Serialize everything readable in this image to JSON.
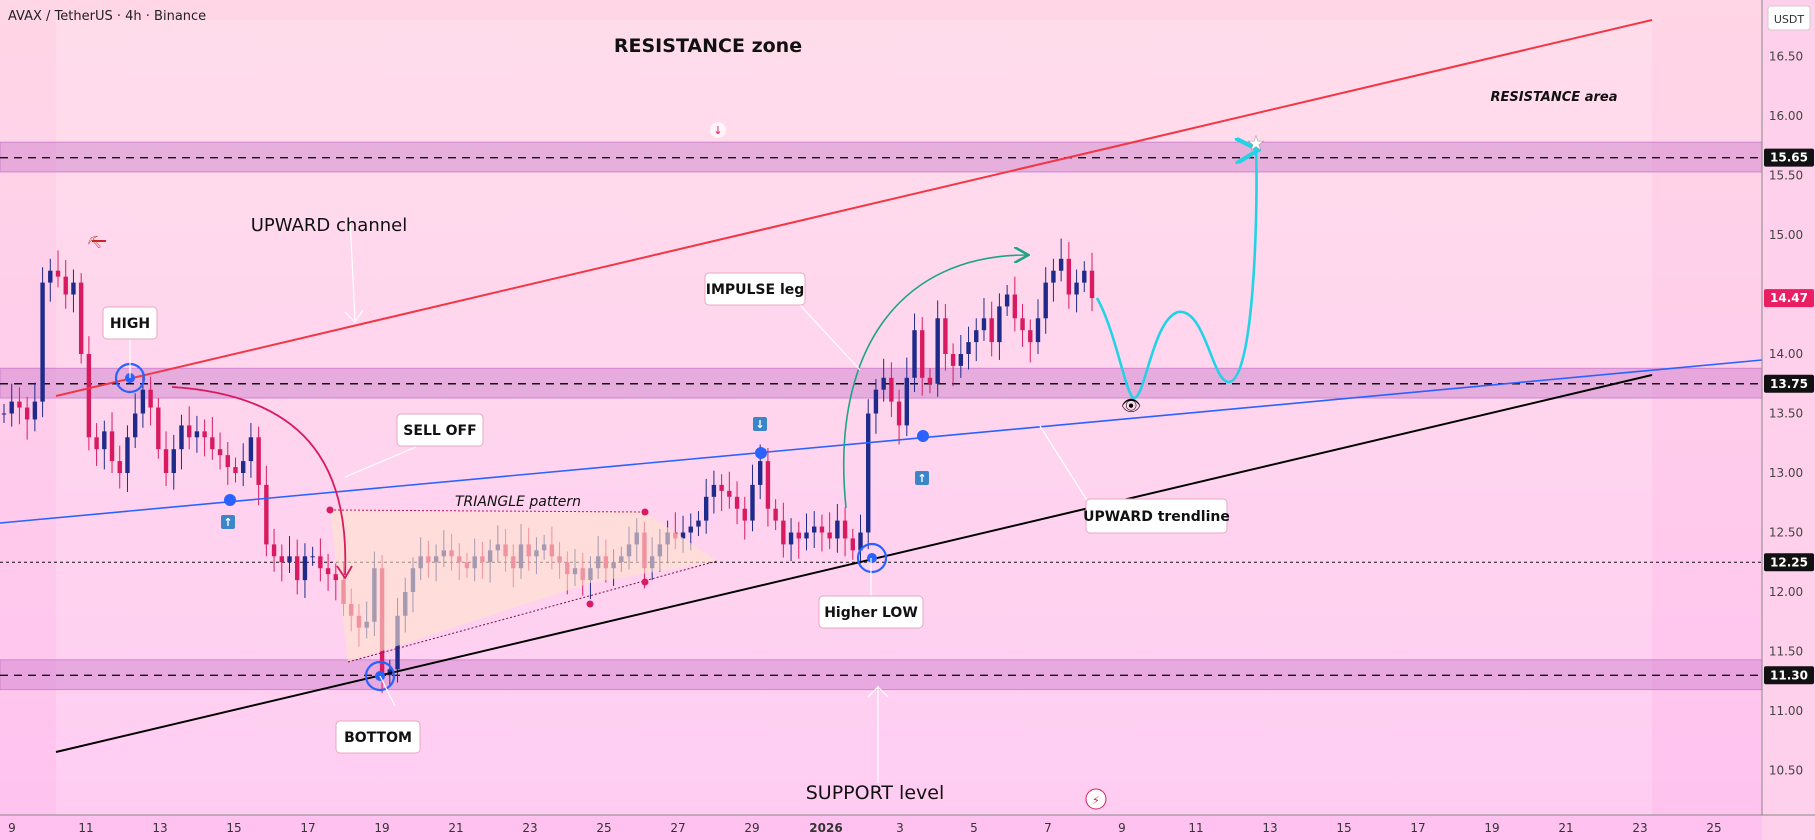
{
  "header": {
    "symbol_line": "AVAX / TetherUS · 4h · Binance",
    "currency": "USDT"
  },
  "annotations": {
    "resistance_zone": "RESISTANCE zone",
    "resistance_area": "RESISTANCE area",
    "upward_channel": "UPWARD channel",
    "high": "HIGH",
    "sell_off": "SELL OFF",
    "triangle_pattern": "TRIANGLE pattern",
    "impulse_leg": "IMPULSE leg",
    "upward_trendline": "UPWARD trendline",
    "higher_low": "Higher LOW",
    "bottom": "BOTTOM",
    "support_level": "SUPPORT level"
  },
  "colors": {
    "channel_red": "#f23645",
    "trendline_blue": "#2962ff",
    "support_black": "#000000",
    "zone_fill": "#c979c9",
    "projection_cyan": "#22d3e6",
    "arrow_green": "#1fa386",
    "bull_candle": "#1e2b8a",
    "bear_candle": "#d81b60",
    "price_badge": "#e91e63",
    "bg_top": "#ffd6e6",
    "bg_bottom": "#ffc2f0"
  },
  "chart_data": {
    "type": "candlestick",
    "y_ticks": [
      "16.50",
      "16.00",
      "15.50",
      "15.00",
      "14.50",
      "14.00",
      "13.50",
      "13.00",
      "12.50",
      "12.00",
      "11.50",
      "11.00",
      "10.50"
    ],
    "x_ticks": [
      "9",
      "11",
      "13",
      "15",
      "17",
      "19",
      "21",
      "23",
      "25",
      "27",
      "29",
      "2026",
      "3",
      "5",
      "7",
      "9",
      "11",
      "13",
      "15",
      "17",
      "19",
      "21",
      "23",
      "25"
    ],
    "ylim": [
      10.1,
      17.1
    ],
    "levels": [
      {
        "label": "15.65",
        "value": 15.65,
        "style": "dashed"
      },
      {
        "label": "13.75",
        "value": 13.75,
        "style": "dashed"
      },
      {
        "label": "12.25",
        "value": 12.25,
        "style": "dotted"
      },
      {
        "label": "11.30",
        "value": 11.3,
        "style": "dashed"
      }
    ],
    "current_price": {
      "label": "14.47",
      "value": 14.47
    },
    "zones": [
      {
        "name": "resistance zone",
        "from": 15.53,
        "to": 15.78
      },
      {
        "name": "mid zone",
        "from": 13.63,
        "to": 13.88
      },
      {
        "name": "support zone",
        "from": 11.18,
        "to": 11.43
      }
    ],
    "series": [
      {
        "name": "close",
        "values": [
          13.5,
          13.6,
          13.55,
          13.45,
          13.6,
          14.6,
          14.7,
          14.65,
          14.5,
          14.6,
          14.0,
          13.3,
          13.2,
          13.35,
          13.1,
          13.0,
          13.3,
          13.5,
          13.7,
          13.55,
          13.2,
          13.0,
          13.2,
          13.4,
          13.3,
          13.35,
          13.3,
          13.2,
          13.15,
          13.05,
          13.0,
          13.1,
          13.3,
          12.9,
          12.4,
          12.3,
          12.25,
          12.3,
          12.1,
          12.3,
          12.3,
          12.2,
          12.15,
          12.1,
          11.9,
          11.8,
          11.7,
          11.75,
          12.2,
          11.3,
          11.35,
          11.8,
          12.0,
          12.2,
          12.3,
          12.25,
          12.3,
          12.35,
          12.3,
          12.25,
          12.2,
          12.3,
          12.25,
          12.35,
          12.4,
          12.3,
          12.2,
          12.4,
          12.3,
          12.35,
          12.4,
          12.3,
          12.25,
          12.15,
          12.2,
          12.1,
          12.2,
          12.3,
          12.2,
          12.25,
          12.3,
          12.4,
          12.5,
          12.2,
          12.3,
          12.4,
          12.5,
          12.45,
          12.5,
          12.55,
          12.6,
          12.8,
          12.9,
          12.85,
          12.8,
          12.7,
          12.6,
          12.9,
          13.1,
          12.7,
          12.6,
          12.4,
          12.5,
          12.45,
          12.5,
          12.55,
          12.5,
          12.45,
          12.6,
          12.45,
          12.35,
          12.5,
          13.5,
          13.7,
          13.8,
          13.6,
          13.4,
          13.8,
          14.2,
          13.8,
          13.75,
          14.3,
          14.0,
          13.9,
          14.0,
          14.1,
          14.2,
          14.3,
          14.1,
          14.4,
          14.5,
          14.3,
          14.2,
          14.1,
          14.3,
          14.6,
          14.7,
          14.8,
          14.5,
          14.6,
          14.7,
          14.47
        ]
      }
    ],
    "projection": "dip to 13.75 zone, bounce, retest, then rally to 15.65"
  }
}
